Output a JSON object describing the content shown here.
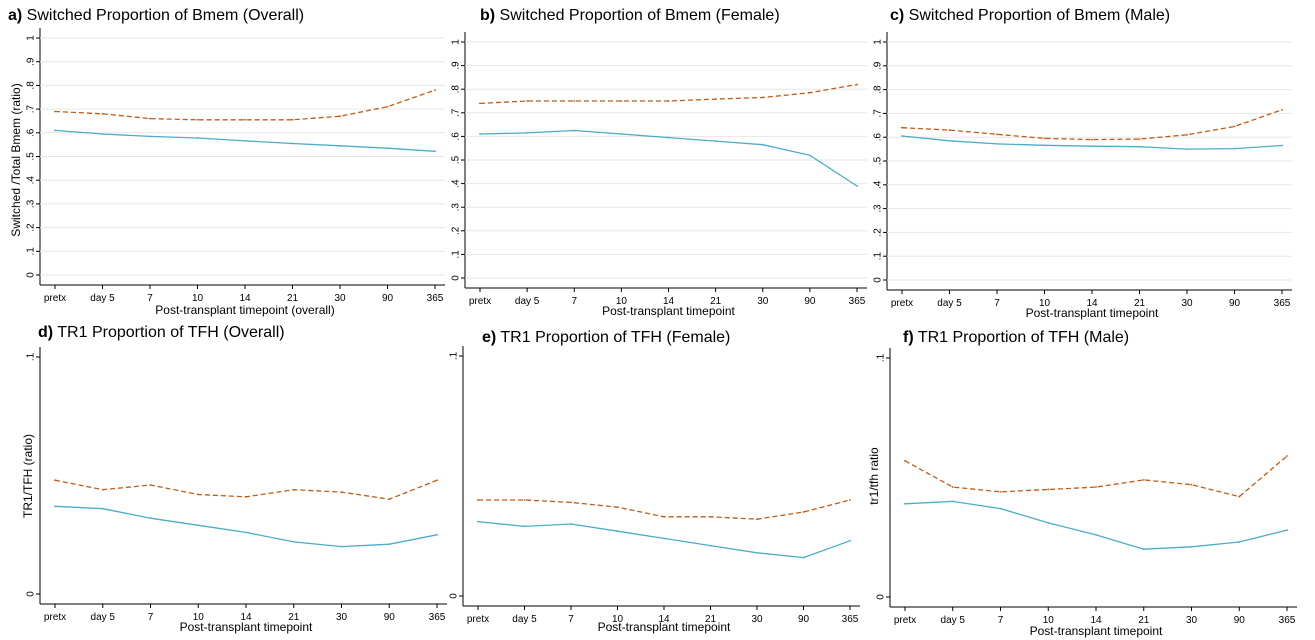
{
  "figure": {
    "x_categories": [
      "pretx",
      "day 5",
      "7",
      "10",
      "14",
      "21",
      "30",
      "90",
      "365"
    ]
  },
  "chart_data": [
    {
      "panel": "a",
      "type": "line",
      "title_letter": "a)",
      "title": "Switched Proportion of Bmem (Overall)",
      "xlabel": "Post-transplant timepoint (overall)",
      "ylabel": "Switched /Total Bmem (ratio)",
      "categories": [
        "pretx",
        "day 5",
        "7",
        "10",
        "14",
        "21",
        "30",
        "90",
        "365"
      ],
      "ylim": [
        0,
        1
      ],
      "yticks": [
        0,
        0.1,
        0.2,
        0.3,
        0.4,
        0.5,
        0.6,
        0.7,
        0.8,
        0.9,
        1
      ],
      "ytick_labels": [
        "0",
        ".1",
        ".2",
        ".3",
        ".4",
        ".5",
        ".6",
        ".7",
        ".8",
        ".9",
        "1"
      ],
      "grid": true,
      "series": [
        {
          "style": "dashed",
          "color": "#c55a11",
          "values": [
            0.69,
            0.68,
            0.66,
            0.655,
            0.655,
            0.655,
            0.67,
            0.71,
            0.78
          ]
        },
        {
          "style": "solid",
          "color": "#4bacc6",
          "values": [
            0.61,
            0.595,
            0.585,
            0.578,
            0.566,
            0.555,
            0.545,
            0.535,
            0.522
          ]
        }
      ]
    },
    {
      "panel": "b",
      "type": "line",
      "title_letter": "b)",
      "title": "Switched Proportion of Bmem (Female)",
      "xlabel": "Post-transplant timepoint",
      "ylabel": "",
      "categories": [
        "pretx",
        "day 5",
        "7",
        "10",
        "14",
        "21",
        "30",
        "90",
        "365"
      ],
      "ylim": [
        0,
        1
      ],
      "yticks": [
        0,
        0.1,
        0.2,
        0.3,
        0.4,
        0.5,
        0.6,
        0.7,
        0.8,
        0.9,
        1
      ],
      "ytick_labels": [
        "0",
        ".1",
        ".2",
        ".3",
        ".4",
        ".5",
        ".6",
        ".7",
        ".8",
        ".9",
        "1"
      ],
      "grid": true,
      "series": [
        {
          "style": "dashed",
          "color": "#c55a11",
          "values": [
            0.74,
            0.75,
            0.75,
            0.75,
            0.75,
            0.758,
            0.765,
            0.785,
            0.82
          ]
        },
        {
          "style": "solid",
          "color": "#4bacc6",
          "values": [
            0.61,
            0.615,
            0.625,
            0.61,
            0.595,
            0.58,
            0.565,
            0.52,
            0.39
          ]
        }
      ]
    },
    {
      "panel": "c",
      "type": "line",
      "title_letter": "c)",
      "title": "Switched Proportion of Bmem (Male)",
      "xlabel": "Post-transplant timepoint",
      "ylabel": "",
      "categories": [
        "pretx",
        "day 5",
        "7",
        "10",
        "14",
        "21",
        "30",
        "90",
        "365"
      ],
      "ylim": [
        0,
        1
      ],
      "yticks": [
        0,
        0.1,
        0.2,
        0.3,
        0.4,
        0.5,
        0.6,
        0.7,
        0.8,
        0.9,
        1
      ],
      "ytick_labels": [
        "0",
        ".1",
        ".2",
        ".3",
        ".4",
        ".5",
        ".6",
        ".7",
        ".8",
        ".9",
        "1"
      ],
      "grid": true,
      "series": [
        {
          "style": "dashed",
          "color": "#c55a11",
          "values": [
            0.64,
            0.63,
            0.612,
            0.595,
            0.59,
            0.592,
            0.61,
            0.645,
            0.715
          ]
        },
        {
          "style": "solid",
          "color": "#4bacc6",
          "values": [
            0.605,
            0.585,
            0.572,
            0.566,
            0.562,
            0.56,
            0.55,
            0.552,
            0.565
          ]
        }
      ]
    },
    {
      "panel": "d",
      "type": "line",
      "title_letter": "d)",
      "title": "TR1 Proportion of TFH (Overall)",
      "xlabel": "Post-transplant timepoint",
      "ylabel": "TR1/TFH (ratio)",
      "categories": [
        "pretx",
        "day 5",
        "7",
        "10",
        "14",
        "21",
        "30",
        "90",
        "365"
      ],
      "ylim": [
        0,
        0.1
      ],
      "yticks": [
        0,
        0.1
      ],
      "ytick_labels": [
        "0",
        ".1"
      ],
      "grid": false,
      "series": [
        {
          "style": "dashed",
          "color": "#c55a11",
          "values": [
            0.048,
            0.044,
            0.046,
            0.042,
            0.041,
            0.044,
            0.043,
            0.04,
            0.048
          ]
        },
        {
          "style": "solid",
          "color": "#4bacc6",
          "values": [
            0.037,
            0.036,
            0.032,
            0.029,
            0.026,
            0.022,
            0.02,
            0.021,
            0.025
          ]
        }
      ]
    },
    {
      "panel": "e",
      "type": "line",
      "title_letter": "e)",
      "title": "TR1 Proportion of TFH (Female)",
      "xlabel": "Post-transplant timepoint",
      "ylabel": "",
      "categories": [
        "pretx",
        "day 5",
        "7",
        "10",
        "14",
        "21",
        "30",
        "90",
        "365"
      ],
      "ylim": [
        0,
        0.1
      ],
      "yticks": [
        0,
        0.1
      ],
      "ytick_labels": [
        "0",
        ".1"
      ],
      "grid": false,
      "series": [
        {
          "style": "dashed",
          "color": "#c55a11",
          "values": [
            0.04,
            0.04,
            0.039,
            0.037,
            0.033,
            0.033,
            0.032,
            0.035,
            0.04
          ]
        },
        {
          "style": "solid",
          "color": "#4bacc6",
          "values": [
            0.031,
            0.029,
            0.03,
            0.027,
            0.024,
            0.021,
            0.018,
            0.016,
            0.023
          ]
        }
      ]
    },
    {
      "panel": "f",
      "type": "line",
      "title_letter": "f)",
      "title": "TR1 Proportion of TFH (Male)",
      "xlabel": "Post-transplant timepoint",
      "ylabel": "tr1/tfh ratio",
      "categories": [
        "pretx",
        "day 5",
        "7",
        "10",
        "14",
        "21",
        "30",
        "90",
        "365"
      ],
      "ylim": [
        0,
        0.1
      ],
      "yticks": [
        0,
        0.1
      ],
      "ytick_labels": [
        "0",
        ".1"
      ],
      "grid": false,
      "series": [
        {
          "style": "dashed",
          "color": "#c55a11",
          "values": [
            0.057,
            0.046,
            0.044,
            0.045,
            0.046,
            0.049,
            0.047,
            0.042,
            0.059
          ]
        },
        {
          "style": "solid",
          "color": "#4bacc6",
          "values": [
            0.039,
            0.04,
            0.037,
            0.031,
            0.026,
            0.02,
            0.021,
            0.023,
            0.028
          ]
        }
      ]
    }
  ]
}
